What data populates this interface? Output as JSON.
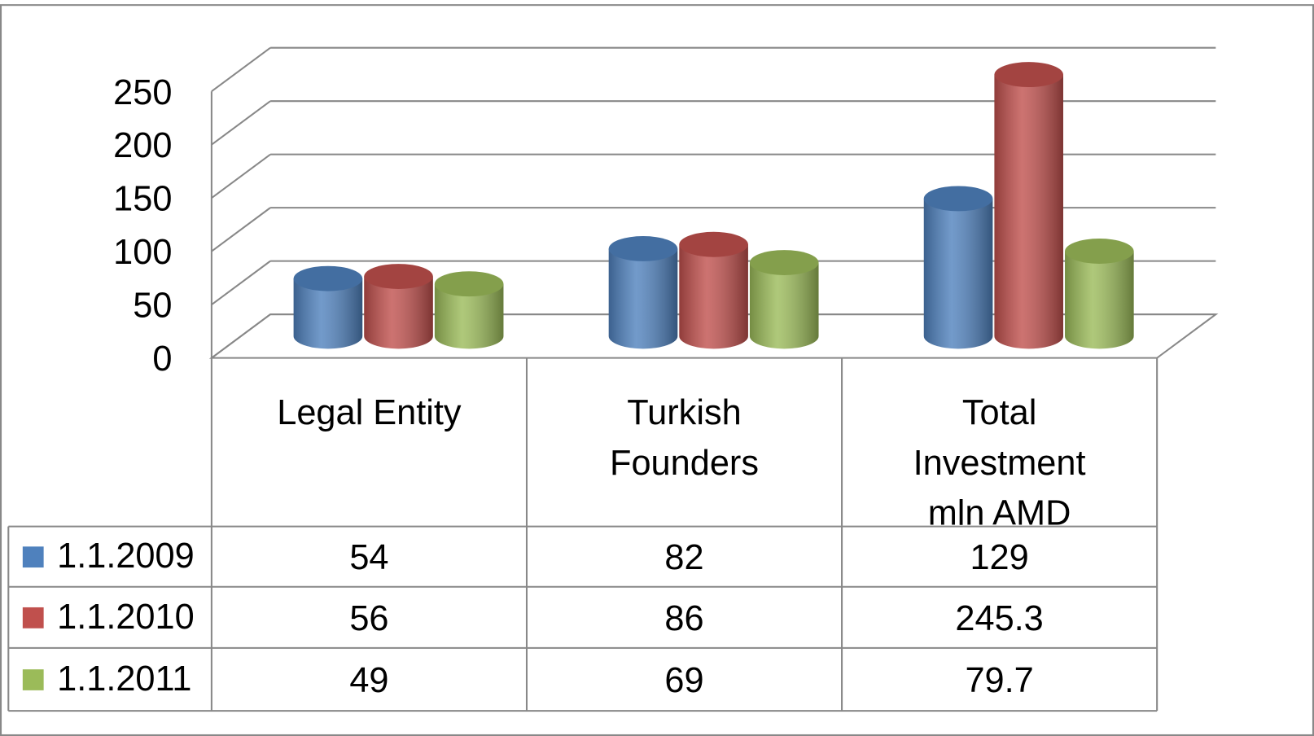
{
  "chart_data": {
    "type": "bar3d",
    "categories": [
      "Legal Entity",
      "Turkish Founders",
      "Total Investment mln AMD"
    ],
    "series": [
      {
        "name": "1.1.2009",
        "color": "#4f81bd",
        "values": [
          54,
          82,
          129
        ]
      },
      {
        "name": "1.1.2010",
        "color": "#c0504d",
        "values": [
          56,
          86,
          245.3
        ]
      },
      {
        "name": "1.1.2011",
        "color": "#9bbb59",
        "values": [
          49,
          69,
          79.7
        ]
      }
    ],
    "ylim": [
      0,
      250
    ],
    "yticks": [
      0,
      50,
      100,
      150,
      200,
      250
    ],
    "grid": true,
    "data_table": true
  }
}
